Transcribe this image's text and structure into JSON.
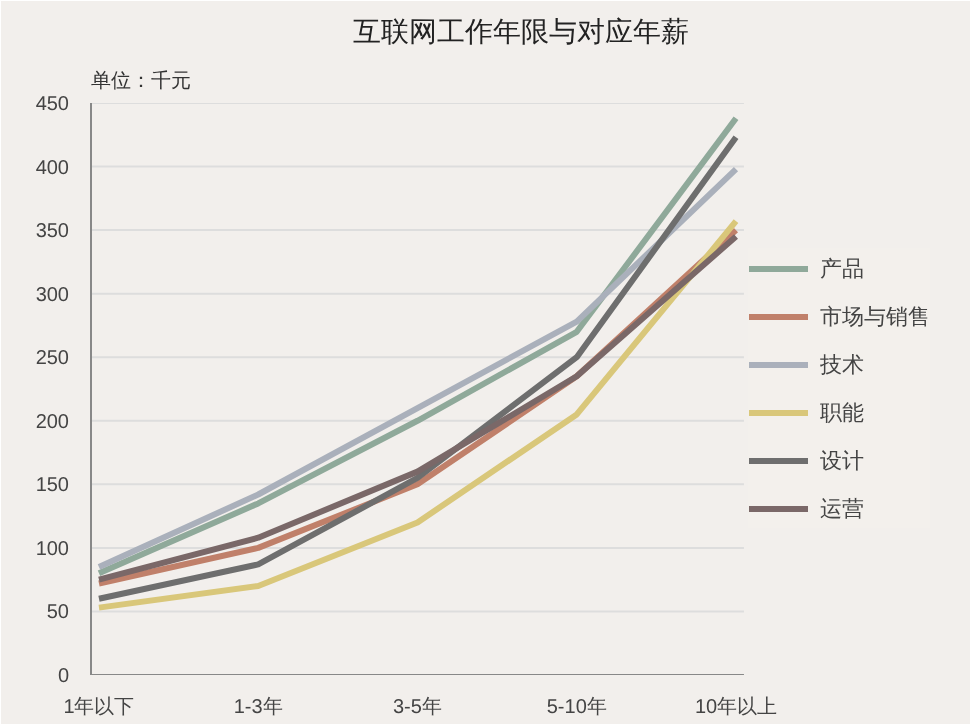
{
  "chart_data": {
    "type": "line",
    "title": "互联网工作年限与对应年薪",
    "annotations": [
      "单位：千元"
    ],
    "categories": [
      "1年以下",
      "1-3年",
      "3-5年",
      "5-10年",
      "10年以上"
    ],
    "series": [
      {
        "name": "产品",
        "color": "#8fa99a",
        "values": [
          80,
          135,
          200,
          270,
          438
        ]
      },
      {
        "name": "市场与销售",
        "color": "#c0806a",
        "values": [
          72,
          100,
          150,
          235,
          350
        ]
      },
      {
        "name": "技术",
        "color": "#aab0bb",
        "values": [
          85,
          142,
          210,
          278,
          398
        ]
      },
      {
        "name": "职能",
        "color": "#d9c77a",
        "values": [
          53,
          70,
          120,
          205,
          357
        ]
      },
      {
        "name": "设计",
        "color": "#6e6e6e",
        "values": [
          60,
          87,
          155,
          250,
          423
        ]
      },
      {
        "name": "运营",
        "color": "#7a6868",
        "values": [
          75,
          108,
          160,
          235,
          345
        ]
      }
    ],
    "ylim": [
      0,
      450
    ],
    "yticks": [
      0,
      50,
      100,
      150,
      200,
      250,
      300,
      350,
      400,
      450
    ],
    "grid": "y",
    "legend": "right",
    "marker": "none",
    "line_style": "solid"
  }
}
